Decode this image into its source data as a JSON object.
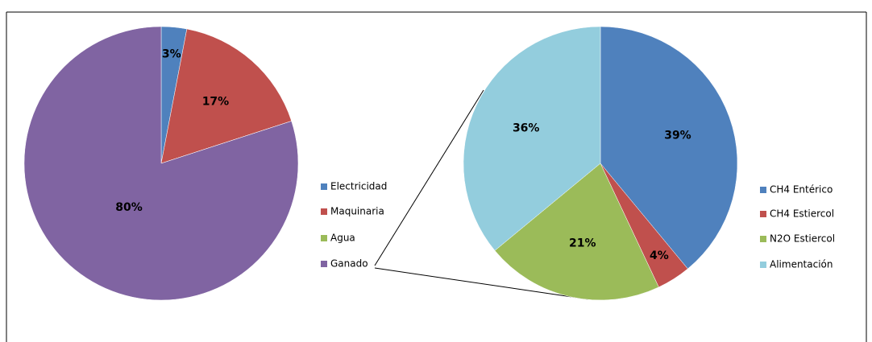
{
  "chart_data": [
    {
      "type": "pie",
      "categories": [
        "Electricidad",
        "Maquinaria",
        "Agua",
        "Ganado"
      ],
      "values": [
        3,
        17,
        0,
        80
      ],
      "value_labels": [
        "3%",
        "17%",
        null,
        "80%"
      ],
      "colors": [
        "#4f81bd",
        "#c0504d",
        "#9bbb59",
        "#8064a2"
      ]
    },
    {
      "type": "pie",
      "categories": [
        "CH4 Entérico",
        "CH4 Estiercol",
        "N2O Estiercol",
        "Alimentación"
      ],
      "values": [
        39,
        4,
        21,
        36
      ],
      "value_labels": [
        "39%",
        "4%",
        "21%",
        "36%"
      ],
      "colors": [
        "#4f81bd",
        "#c0504d",
        "#9bbb59",
        "#93cddd"
      ]
    }
  ]
}
